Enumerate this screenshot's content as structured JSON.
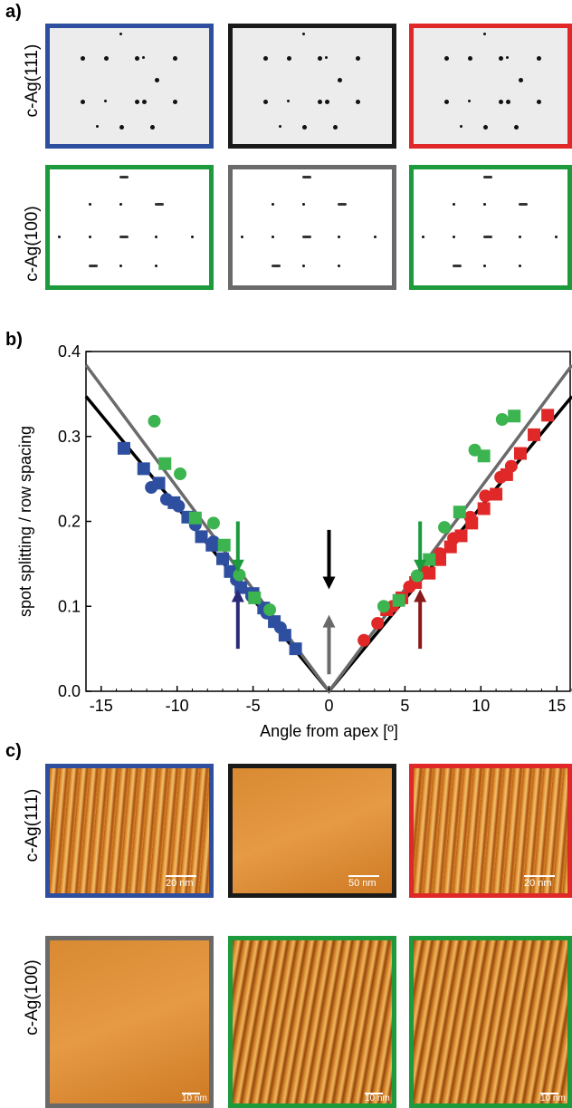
{
  "panel_a": {
    "letter": "a)",
    "row1_label": "c-Ag(111)",
    "row2_label": "c-Ag(100)",
    "frame_colors": [
      "#2e4fa0",
      "#1a1a1a",
      "#e02828",
      "#1c9a3c",
      "#6a6a6a",
      "#1c9a3c"
    ]
  },
  "panel_b": {
    "letter": "b)"
  },
  "panel_c": {
    "letter": "c)",
    "row1_label": "c-Ag(111)",
    "row2_label": "c-Ag(100)",
    "frame_colors": [
      "#2e4fa0",
      "#1a1a1a",
      "#e02828",
      "#6a6a6a",
      "#1c9a3c",
      "#1c9a3c"
    ],
    "scale_labels": [
      "20 nm",
      "50 nm",
      "20 nm",
      "10 nm",
      "10 nm",
      "10 nm"
    ]
  },
  "chart_data": {
    "type": "scatter",
    "xlabel": "Angle from apex [º]",
    "ylabel": "spot splitting / row spacing",
    "xlim": [
      -16,
      16
    ],
    "ylim": [
      0,
      0.4
    ],
    "xticks": [
      -15,
      -10,
      -5,
      0,
      5,
      10,
      15
    ],
    "yticks": [
      0.0,
      0.1,
      0.2,
      0.3,
      0.4
    ],
    "series": [
      {
        "marker": "square",
        "color": "#2e4fa0",
        "x": [
          -13.5,
          -12.2,
          -11.2,
          -10.2,
          -9.3,
          -8.4,
          -7.7,
          -7.0,
          -6.5,
          -5.8,
          -5.0,
          -4.3,
          -3.6,
          -2.9,
          -2.2
        ],
        "y": [
          0.286,
          0.262,
          0.245,
          0.222,
          0.205,
          0.182,
          0.172,
          0.156,
          0.141,
          0.122,
          0.115,
          0.098,
          0.082,
          0.066,
          0.05
        ]
      },
      {
        "marker": "circle",
        "color": "#2e4fa0",
        "x": [
          -11.7,
          -10.7,
          -9.9,
          -8.8,
          -7.6,
          -6.1,
          -5.1,
          -4.1,
          -3.2
        ],
        "y": [
          0.24,
          0.226,
          0.218,
          0.196,
          0.176,
          0.131,
          0.112,
          0.092,
          0.075
        ]
      },
      {
        "marker": "square",
        "color": "#e02828",
        "x": [
          3.8,
          4.8,
          5.7,
          6.6,
          7.3,
          8.0,
          8.7,
          9.4,
          10.2,
          11.0,
          11.7,
          12.6,
          13.5,
          14.4
        ],
        "y": [
          0.096,
          0.11,
          0.128,
          0.139,
          0.155,
          0.17,
          0.183,
          0.198,
          0.215,
          0.232,
          0.255,
          0.28,
          0.302,
          0.325
        ]
      },
      {
        "marker": "circle",
        "color": "#e02828",
        "x": [
          2.3,
          3.2,
          4.2,
          5.3,
          6.3,
          7.3,
          8.2,
          9.3,
          10.3,
          11.3,
          12.0
        ],
        "y": [
          0.06,
          0.08,
          0.1,
          0.123,
          0.141,
          0.162,
          0.18,
          0.205,
          0.23,
          0.252,
          0.265
        ]
      },
      {
        "marker": "circle",
        "color": "#3cb450",
        "x": [
          -11.5,
          -9.8,
          -7.6,
          -5.9,
          -3.9,
          3.6,
          5.8,
          7.6,
          9.6,
          11.4
        ],
        "y": [
          0.318,
          0.256,
          0.198,
          0.137,
          0.096,
          0.1,
          0.136,
          0.193,
          0.284,
          0.32
        ]
      },
      {
        "marker": "square",
        "color": "#3cb450",
        "x": [
          -10.8,
          -8.8,
          -6.9,
          -4.9,
          4.6,
          6.6,
          8.6,
          10.2,
          12.2
        ],
        "y": [
          0.268,
          0.204,
          0.172,
          0.11,
          0.107,
          0.155,
          0.211,
          0.277,
          0.324
        ]
      }
    ],
    "lines": [
      {
        "color": "#000000",
        "slope": 0.0217
      },
      {
        "color": "#6a6a6a",
        "slope": 0.024
      }
    ],
    "arrows": [
      {
        "color": "#1c9a3c",
        "x": -6,
        "direction": "down"
      },
      {
        "color": "#2a2a7a",
        "x": -6,
        "direction": "up"
      },
      {
        "color": "#000000",
        "x": 0,
        "direction": "down"
      },
      {
        "color": "#6a6a6a",
        "x": 0,
        "direction": "up"
      },
      {
        "color": "#1c9a3c",
        "x": 6,
        "direction": "down"
      },
      {
        "color": "#8a1a1a",
        "x": 6,
        "direction": "up"
      }
    ]
  }
}
